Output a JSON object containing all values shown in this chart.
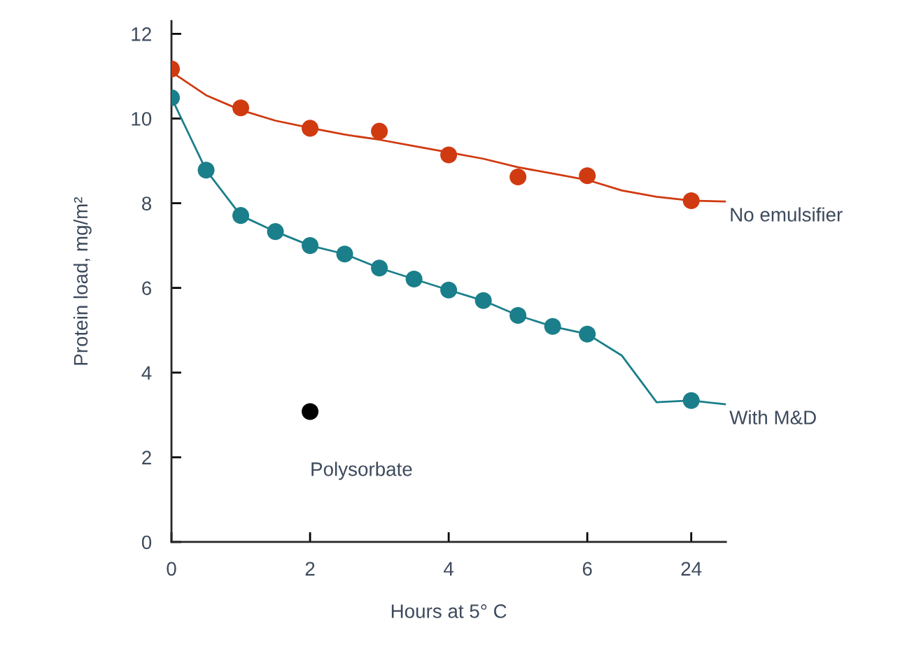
{
  "chart_data": {
    "type": "line",
    "ylabel": "Protein load, mg/m²",
    "xlabel": "Hours at 5° C",
    "ylim": [
      0,
      12.3
    ],
    "yticks": [
      0,
      2,
      4,
      6,
      8,
      10,
      12
    ],
    "categories": [
      "0",
      null,
      null,
      null,
      "2",
      null,
      null,
      null,
      "4",
      null,
      null,
      null,
      "6",
      null,
      null,
      "24",
      null
    ],
    "series": [
      {
        "name": "No emulsifier",
        "color": "#d03a10",
        "values": [
          11.1,
          10.55,
          10.2,
          9.95,
          9.78,
          9.62,
          9.5,
          9.35,
          9.2,
          9.05,
          8.85,
          8.7,
          8.55,
          8.3,
          8.15,
          8.06,
          8.04
        ]
      },
      {
        "name": "With M&D",
        "color": "#1a7f8a",
        "values": [
          10.49,
          8.78,
          7.71,
          7.33,
          7.0,
          6.8,
          6.47,
          6.21,
          5.95,
          5.7,
          5.35,
          5.09,
          4.91,
          4.4,
          3.3,
          3.34,
          3.25
        ]
      },
      {
        "type": "scatter",
        "color": "#d03a10",
        "values": [
          11.17,
          null,
          10.25,
          null,
          9.77,
          null,
          9.7,
          null,
          9.14,
          null,
          8.62,
          null,
          8.65,
          null,
          null,
          8.06,
          null
        ],
        "marker": "circle"
      },
      {
        "type": "scatter",
        "color": "#1a7f8a",
        "values": [
          10.49,
          8.78,
          7.71,
          7.33,
          7.0,
          6.8,
          6.47,
          6.21,
          5.95,
          5.7,
          5.35,
          5.09,
          4.91,
          null,
          null,
          3.34,
          null
        ],
        "marker": "circle"
      },
      {
        "type": "scatter",
        "name": "Polysorbate",
        "color": "#000000",
        "values": [
          null,
          null,
          null,
          null,
          3.08,
          null,
          null,
          null,
          null,
          null,
          null,
          null,
          null,
          null,
          null,
          null,
          null
        ],
        "marker": "circle"
      }
    ]
  }
}
